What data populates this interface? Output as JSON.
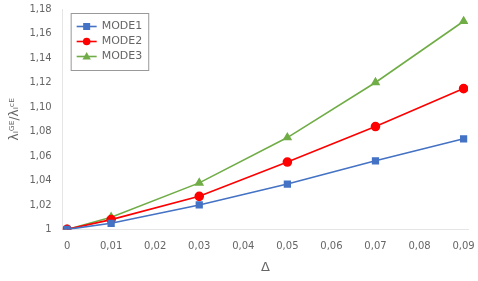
{
  "chart_data": {
    "type": "line",
    "x": [
      0,
      0.01,
      0.03,
      0.05,
      0.07,
      0.09
    ],
    "series": [
      {
        "name": "MODE1",
        "color": "#4472c4",
        "marker": "square",
        "values": [
          1.0,
          1.005,
          1.02,
          1.037,
          1.056,
          1.074
        ]
      },
      {
        "name": "MODE2",
        "color": "#ff0000",
        "marker": "circle",
        "values": [
          1.0,
          1.008,
          1.027,
          1.055,
          1.084,
          1.115
        ]
      },
      {
        "name": "MODE3",
        "color": "#70ad47",
        "marker": "triangle",
        "values": [
          1.0,
          1.01,
          1.038,
          1.075,
          1.12,
          1.17
        ]
      }
    ],
    "xlabel": "Δ",
    "ylabel": "λᵢᴳᴱ/λᵢᶜᴱ",
    "xlim": [
      -0.001,
      0.091
    ],
    "ylim": [
      1.0,
      1.18
    ],
    "xticks": [
      0,
      {
        "value": 0.01,
        "label": "0,01"
      },
      {
        "value": 0.02,
        "label": "0,02"
      },
      {
        "value": 0.03,
        "label": "0,03"
      },
      {
        "value": 0.04,
        "label": "0,04"
      },
      {
        "value": 0.05,
        "label": "0,05"
      },
      {
        "value": 0.06,
        "label": "0,06"
      },
      {
        "value": 0.07,
        "label": "0,07"
      },
      {
        "value": 0.08,
        "label": "0,08"
      },
      {
        "value": 0.09,
        "label": "0,09"
      }
    ],
    "yticks": [
      1,
      {
        "value": 1.02,
        "label": "1,02"
      },
      {
        "value": 1.04,
        "label": "1,04"
      },
      {
        "value": 1.06,
        "label": "1,06"
      },
      {
        "value": 1.08,
        "label": "1,08"
      },
      {
        "value": 1.1,
        "label": "1,10"
      },
      {
        "value": 1.12,
        "label": "1,12"
      },
      {
        "value": 1.14,
        "label": "1,14"
      },
      {
        "value": 1.16,
        "label": "1,16"
      },
      {
        "value": 1.18,
        "label": "1,18"
      }
    ],
    "grid": false,
    "legend": "upper left"
  }
}
